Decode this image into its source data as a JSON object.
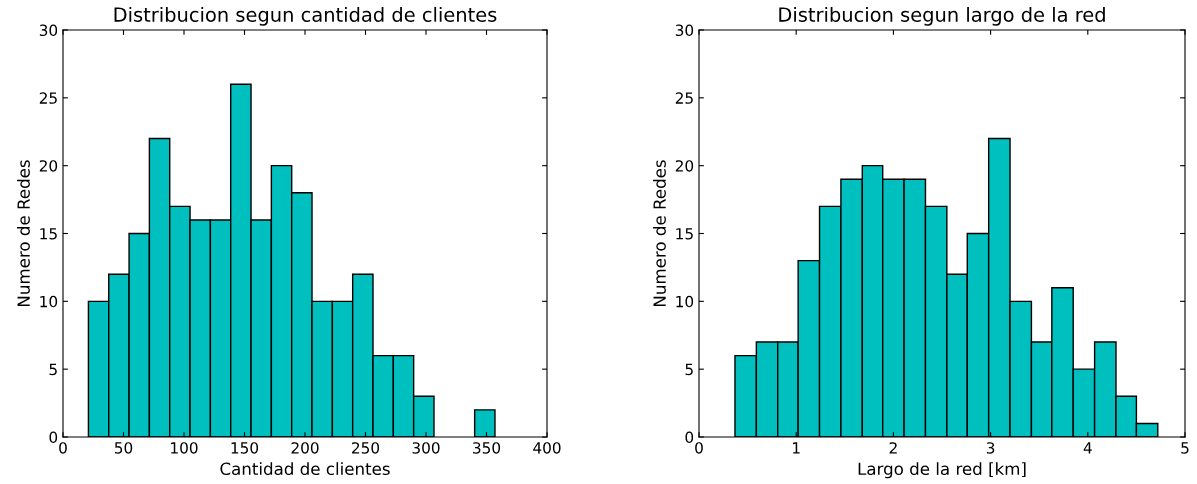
{
  "chart_data": [
    {
      "type": "histogram",
      "title": "Distribucion segun cantidad de clientes",
      "xlabel": "Cantidad de clientes",
      "ylabel": "Numero de Redes",
      "color": "#00bfbf",
      "bins": [
        21,
        37.8,
        54.6,
        71.4,
        88.2,
        105,
        121.8,
        138.6,
        155.4,
        172.2,
        189,
        205.8,
        222.6,
        239.4,
        256.2,
        273,
        289.8,
        306.6,
        323.4,
        340.2,
        357
      ],
      "values": [
        10,
        12,
        15,
        22,
        17,
        16,
        16,
        26,
        16,
        20,
        18,
        10,
        10,
        12,
        6,
        6,
        3,
        0,
        0,
        2
      ],
      "xlim": [
        0,
        400
      ],
      "xticks": [
        0,
        50,
        100,
        150,
        200,
        250,
        300,
        350,
        400
      ],
      "ylim": [
        0,
        30
      ],
      "yticks": [
        0,
        5,
        10,
        15,
        20,
        25,
        30
      ]
    },
    {
      "type": "histogram",
      "title": "Distribucion segun largo de la red",
      "xlabel": "Largo de la red [km]",
      "ylabel": "Numero de Redes",
      "color": "#00bfbf",
      "bins": [
        0.37,
        0.59,
        0.81,
        1.02,
        1.24,
        1.46,
        1.68,
        1.89,
        2.11,
        2.33,
        2.55,
        2.76,
        2.98,
        3.2,
        3.42,
        3.63,
        3.85,
        4.07,
        4.29,
        4.5,
        4.72
      ],
      "values": [
        6,
        7,
        7,
        13,
        17,
        19,
        20,
        19,
        19,
        17,
        12,
        15,
        22,
        10,
        7,
        11,
        5,
        7,
        3,
        1
      ],
      "xlim": [
        0,
        5
      ],
      "xticks": [
        0,
        1,
        2,
        3,
        4,
        5
      ],
      "ylim": [
        0,
        30
      ],
      "yticks": [
        0,
        5,
        10,
        15,
        20,
        25,
        30
      ]
    }
  ]
}
